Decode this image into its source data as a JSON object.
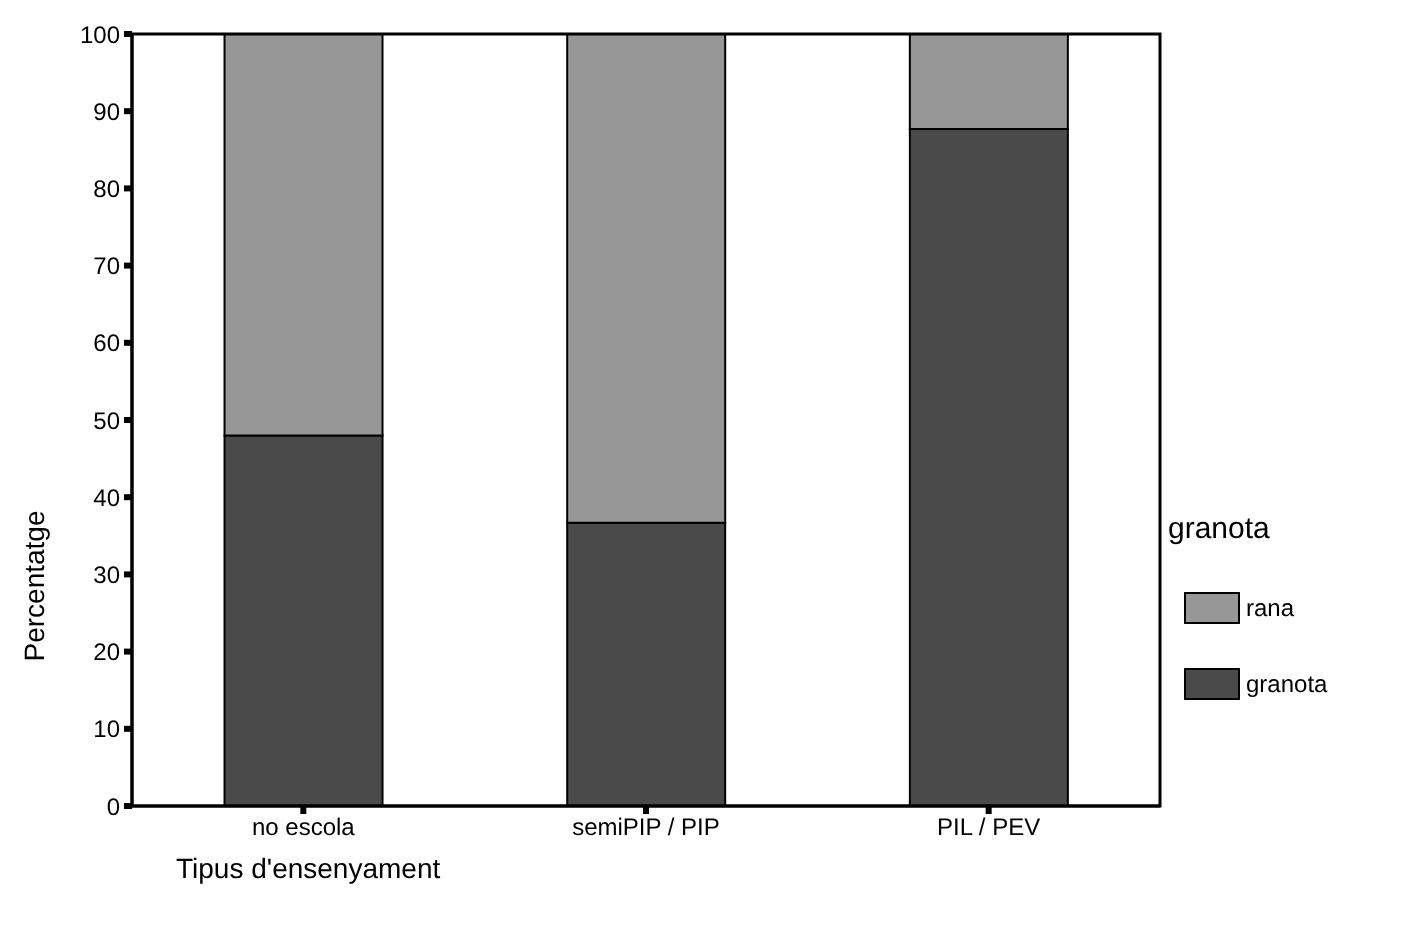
{
  "chart_data": {
    "type": "bar",
    "stacked": true,
    "xlabel": "Tipus d'ensenyament",
    "ylabel": "Percentatge",
    "legend_title": "granota",
    "legend": "right",
    "categories": [
      "no escola",
      "semiPIP / PIP",
      "PIL / PEV"
    ],
    "series": [
      {
        "name": "granota",
        "color": "#4a4a4a",
        "values": [
          48.0,
          36.7,
          87.7
        ]
      },
      {
        "name": "rana",
        "color": "#979797",
        "values": [
          52.0,
          63.3,
          12.3
        ]
      }
    ],
    "ylim": [
      0,
      100
    ],
    "yticks": [
      0,
      10,
      20,
      30,
      40,
      50,
      60,
      70,
      80,
      90,
      100
    ]
  }
}
